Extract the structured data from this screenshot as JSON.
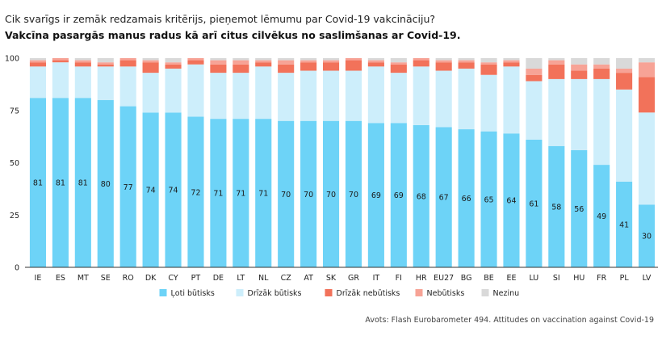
{
  "chart_data": {
    "type": "bar",
    "stacked": true,
    "title": "Cik svarīgs ir zemāk redzamais kritērijs, pieņemot lēmumu par Covid-19 vakcināciju?",
    "subtitle": "Vakcīna pasargās manus radus kā arī citus cilvēkus no saslimšanas ar Covid-19.",
    "categories": [
      "IE",
      "ES",
      "MT",
      "SE",
      "RO",
      "DK",
      "CY",
      "PT",
      "DE",
      "LT",
      "NL",
      "CZ",
      "AT",
      "SK",
      "GR",
      "IT",
      "FI",
      "HR",
      "EU27",
      "BG",
      "BE",
      "EE",
      "LU",
      "SI",
      "HU",
      "FR",
      "PL",
      "LV"
    ],
    "ylim": [
      0,
      100
    ],
    "yticks": [
      0,
      25,
      50,
      75,
      100
    ],
    "series": [
      {
        "name": "Ļoti būtisks",
        "color": "#6dd3f7",
        "values": [
          81,
          81,
          81,
          80,
          77,
          74,
          74,
          72,
          71,
          71,
          71,
          70,
          70,
          70,
          70,
          69,
          69,
          68,
          67,
          66,
          65,
          64,
          61,
          58,
          56,
          49,
          41,
          30
        ]
      },
      {
        "name": "Drīzāk būtisks",
        "color": "#cdeefb",
        "values": [
          15,
          17,
          15,
          16,
          19,
          19,
          21,
          25,
          22,
          22,
          25,
          23,
          24,
          24,
          24,
          27,
          24,
          28,
          27,
          29,
          27,
          32,
          28,
          32,
          34,
          41,
          44,
          44
        ]
      },
      {
        "name": "Drīzāk nebūtisks",
        "color": "#f2725a",
        "values": [
          2,
          1,
          2,
          1,
          3,
          5,
          2,
          2,
          4,
          4,
          2,
          4,
          4,
          4,
          5,
          2,
          4,
          3,
          4,
          3,
          5,
          2,
          3,
          7,
          4,
          5,
          8,
          17
        ]
      },
      {
        "name": "Nebūtisks",
        "color": "#f7a396",
        "values": [
          1,
          1,
          1,
          1,
          1,
          1,
          1,
          1,
          2,
          2,
          1,
          2,
          1,
          1,
          1,
          1,
          1,
          1,
          1,
          1,
          1,
          1,
          3,
          2,
          3,
          2,
          2,
          7
        ]
      },
      {
        "name": "Nezinu",
        "color": "#d9d9d9",
        "values": [
          1,
          0,
          1,
          2,
          0,
          1,
          2,
          0,
          1,
          1,
          1,
          1,
          1,
          1,
          0,
          1,
          2,
          0,
          1,
          1,
          2,
          1,
          5,
          1,
          3,
          3,
          5,
          2
        ]
      }
    ],
    "show_value_labels_for_series": 0,
    "legend_position": "bottom-center"
  },
  "source_text": "Avots: Flash Eurobarometer 494. Attitudes on vaccination against Covid-19"
}
